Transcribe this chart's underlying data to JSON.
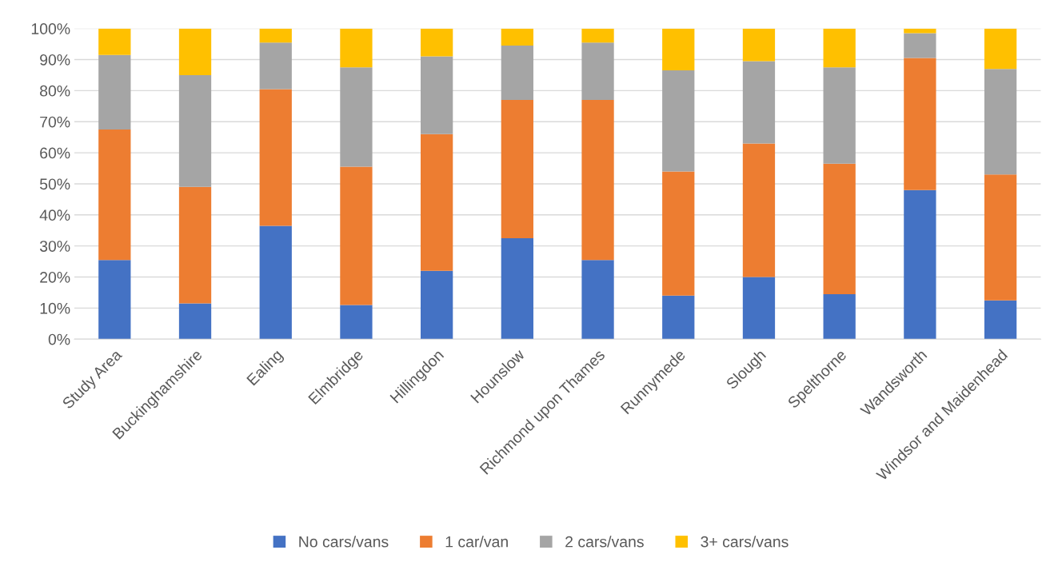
{
  "chart_data": {
    "type": "bar",
    "stacked": true,
    "categories": [
      "Study Area",
      "Buckinghamshire",
      "Ealing",
      "Elmbridge",
      "Hillingdon",
      "Hounslow",
      "Richmond upon Thames",
      "Runnymede",
      "Slough",
      "Spelthorne",
      "Wandsworth",
      "Windsor and Maidenhead"
    ],
    "series": [
      {
        "name": "No cars/vans",
        "color": "#4472c4",
        "values": [
          25.5,
          11.5,
          36.5,
          11,
          22,
          32.5,
          25.5,
          14,
          20,
          14.5,
          48,
          12.5
        ]
      },
      {
        "name": "1 car/van",
        "color": "#ed7d31",
        "values": [
          42,
          37.5,
          44,
          44.5,
          44,
          44.5,
          51.5,
          40,
          43,
          42,
          42.5,
          40.5
        ]
      },
      {
        "name": "2 cars/vans",
        "color": "#a5a5a5",
        "values": [
          24,
          36,
          15,
          32,
          25,
          17.5,
          18.5,
          32.5,
          26.5,
          31,
          8,
          34
        ]
      },
      {
        "name": "3+ cars/vans",
        "color": "#ffc000",
        "values": [
          8.5,
          15,
          4.5,
          12.5,
          9,
          5.5,
          4.5,
          13.5,
          10.5,
          12.5,
          1.5,
          13
        ]
      }
    ],
    "ylim": [
      0,
      100
    ],
    "yticks": [
      {
        "value": 0,
        "label": "0%"
      },
      {
        "value": 10,
        "label": "10%"
      },
      {
        "value": 20,
        "label": "20%"
      },
      {
        "value": 30,
        "label": "30%"
      },
      {
        "value": 40,
        "label": "40%"
      },
      {
        "value": 50,
        "label": "50%"
      },
      {
        "value": 60,
        "label": "60%"
      },
      {
        "value": 70,
        "label": "70%"
      },
      {
        "value": 80,
        "label": "80%"
      },
      {
        "value": 90,
        "label": "90%"
      },
      {
        "value": 100,
        "label": "100%"
      }
    ],
    "grid": "y",
    "legend": "bottom"
  }
}
